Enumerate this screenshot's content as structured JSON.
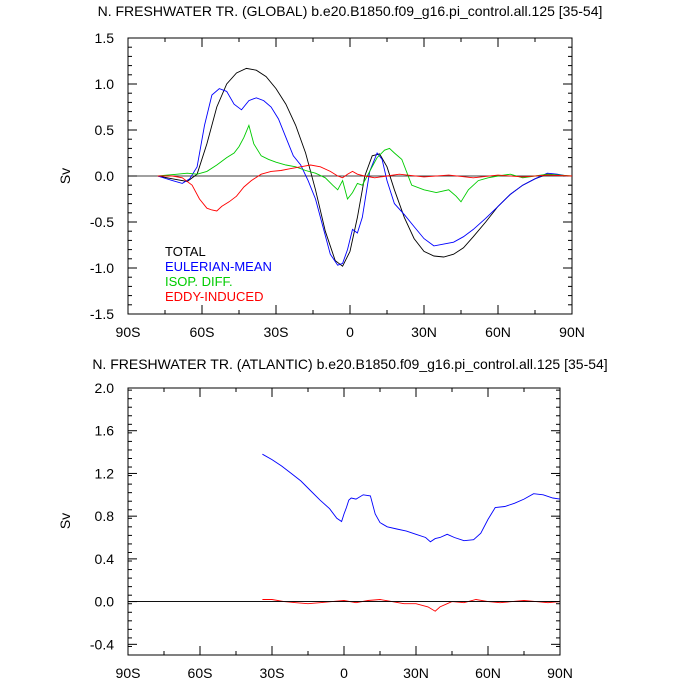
{
  "chart_data": [
    {
      "type": "line",
      "title": "N. FRESHWATER TR. (GLOBAL) b.e20.B1850.f09_g16.pi_control.all.125 [35-54]",
      "ylabel": "Sv",
      "xlabel": "",
      "xlim": [
        -90,
        90
      ],
      "ylim": [
        -1.5,
        1.5
      ],
      "x_ticks": [
        -90,
        -60,
        -30,
        0,
        30,
        60,
        90
      ],
      "x_tick_labels": [
        "90S",
        "60S",
        "30S",
        "0",
        "30N",
        "60N",
        "90N"
      ],
      "y_ticks": [
        -1.5,
        -1.0,
        -0.5,
        0.0,
        0.5,
        1.0,
        1.5
      ],
      "y_tick_labels": [
        "-1.5",
        "-1.0",
        "-0.5",
        "0.0",
        "0.5",
        "1.0",
        "1.5"
      ],
      "zero_line": true,
      "legend_position": "bottom-left",
      "series": [
        {
          "name": "TOTAL",
          "color": "#000000",
          "x": [
            -78,
            -72,
            -66,
            -62,
            -58,
            -54,
            -50,
            -46,
            -42,
            -38,
            -34,
            -30,
            -26,
            -22,
            -18,
            -14,
            -10,
            -6,
            -3,
            0,
            3,
            6,
            9,
            12,
            15,
            18,
            22,
            26,
            30,
            34,
            38,
            42,
            46,
            50,
            55,
            60,
            65,
            70,
            75,
            80,
            84,
            88
          ],
          "y": [
            0.0,
            -0.03,
            -0.06,
            0.02,
            0.35,
            0.75,
            1.0,
            1.12,
            1.17,
            1.15,
            1.08,
            0.95,
            0.78,
            0.55,
            0.25,
            -0.15,
            -0.6,
            -0.92,
            -0.98,
            -0.82,
            -0.45,
            0.0,
            0.22,
            0.24,
            0.1,
            -0.15,
            -0.45,
            -0.68,
            -0.82,
            -0.87,
            -0.88,
            -0.85,
            -0.78,
            -0.66,
            -0.5,
            -0.33,
            -0.2,
            -0.1,
            -0.03,
            0.02,
            0.01,
            0.0
          ]
        },
        {
          "name": "EULERIAN-MEAN",
          "color": "#0000ff",
          "x": [
            -78,
            -72,
            -68,
            -65,
            -62,
            -59,
            -56,
            -53,
            -50,
            -47,
            -44,
            -41,
            -38,
            -35,
            -32,
            -29,
            -26,
            -23,
            -20,
            -17,
            -14,
            -11,
            -8,
            -5,
            -3,
            -1,
            1,
            3,
            5,
            8,
            11,
            13,
            15,
            18,
            22,
            26,
            30,
            34,
            38,
            42,
            46,
            50,
            55,
            60,
            65,
            70,
            75,
            80,
            84,
            88
          ],
          "y": [
            0.0,
            -0.05,
            -0.08,
            -0.03,
            0.1,
            0.55,
            0.88,
            0.95,
            0.92,
            0.78,
            0.72,
            0.82,
            0.85,
            0.82,
            0.75,
            0.62,
            0.42,
            0.22,
            0.12,
            -0.05,
            -0.25,
            -0.55,
            -0.85,
            -0.97,
            -0.95,
            -0.8,
            -0.58,
            -0.62,
            -0.45,
            0.05,
            0.25,
            0.18,
            -0.05,
            -0.3,
            -0.42,
            -0.55,
            -0.68,
            -0.76,
            -0.74,
            -0.72,
            -0.66,
            -0.58,
            -0.46,
            -0.33,
            -0.2,
            -0.1,
            -0.03,
            0.03,
            0.02,
            0.0
          ]
        },
        {
          "name": "ISOP. DIFF.",
          "color": "#00cc00",
          "x": [
            -78,
            -70,
            -66,
            -62,
            -58,
            -54,
            -50,
            -47,
            -45,
            -43,
            -41,
            -39,
            -36,
            -33,
            -30,
            -26,
            -22,
            -18,
            -14,
            -10,
            -7,
            -5,
            -3,
            -1,
            1,
            3,
            5,
            8,
            11,
            14,
            16,
            18,
            21,
            25,
            30,
            35,
            40,
            43,
            45,
            48,
            52,
            56,
            60,
            65,
            70,
            75,
            80,
            85,
            90
          ],
          "y": [
            0.0,
            0.02,
            0.03,
            0.02,
            0.05,
            0.12,
            0.2,
            0.25,
            0.32,
            0.42,
            0.55,
            0.35,
            0.22,
            0.18,
            0.15,
            0.12,
            0.1,
            0.06,
            0.03,
            -0.02,
            -0.1,
            -0.15,
            -0.05,
            -0.25,
            -0.18,
            -0.08,
            -0.1,
            0.05,
            0.2,
            0.28,
            0.3,
            0.25,
            0.18,
            -0.1,
            -0.15,
            -0.18,
            -0.15,
            -0.22,
            -0.28,
            -0.15,
            -0.05,
            -0.02,
            0.0,
            0.02,
            -0.02,
            0.0,
            0.02,
            0.01,
            0.0
          ]
        },
        {
          "name": "EDDY-INDUCED",
          "color": "#ff0000",
          "x": [
            -78,
            -72,
            -68,
            -64,
            -61,
            -58,
            -56,
            -54,
            -52,
            -49,
            -46,
            -43,
            -40,
            -36,
            -32,
            -28,
            -24,
            -20,
            -16,
            -12,
            -8,
            -5,
            -3,
            -1,
            1,
            3,
            6,
            10,
            15,
            20,
            30,
            40,
            50,
            60,
            70,
            80,
            90
          ],
          "y": [
            0.0,
            0.0,
            -0.02,
            -0.1,
            -0.25,
            -0.35,
            -0.37,
            -0.38,
            -0.33,
            -0.28,
            -0.22,
            -0.12,
            -0.05,
            0.02,
            0.05,
            0.06,
            0.08,
            0.1,
            0.12,
            0.1,
            0.05,
            0.0,
            -0.02,
            0.02,
            0.05,
            0.02,
            0.0,
            -0.02,
            0.0,
            0.02,
            -0.01,
            0.01,
            -0.02,
            0.01,
            -0.01,
            0.01,
            0.0
          ]
        }
      ]
    },
    {
      "type": "line",
      "title": "N. FRESHWATER TR. (ATLANTIC) b.e20.B1850.f09_g16.pi_control.all.125 [35-54]",
      "ylabel": "Sv",
      "xlabel": "",
      "xlim": [
        -90,
        90
      ],
      "ylim": [
        -0.5,
        2.0
      ],
      "x_ticks": [
        -90,
        -60,
        -30,
        0,
        30,
        60,
        90
      ],
      "x_tick_labels": [
        "90S",
        "60S",
        "30S",
        "0",
        "30N",
        "60N",
        "90N"
      ],
      "y_ticks": [
        -0.4,
        0.0,
        0.4,
        0.8,
        1.2,
        1.6,
        2.0
      ],
      "y_tick_labels": [
        "-0.4",
        "0.0",
        "0.4",
        "0.8",
        "1.2",
        "1.6",
        "2.0"
      ],
      "zero_line": true,
      "series": [
        {
          "color": "#0000ff",
          "x": [
            -34,
            -30,
            -26,
            -22,
            -18,
            -14,
            -10,
            -6,
            -3,
            -1,
            0,
            1,
            2,
            3,
            5,
            8,
            11,
            13,
            15,
            18,
            22,
            26,
            30,
            34,
            36,
            38,
            40,
            43,
            46,
            50,
            54,
            57,
            60,
            63,
            67,
            71,
            75,
            79,
            83,
            87,
            90
          ],
          "y": [
            1.38,
            1.33,
            1.27,
            1.2,
            1.13,
            1.04,
            0.95,
            0.87,
            0.78,
            0.75,
            0.82,
            0.88,
            0.95,
            0.97,
            0.96,
            1.0,
            0.99,
            0.82,
            0.74,
            0.7,
            0.68,
            0.66,
            0.63,
            0.6,
            0.56,
            0.59,
            0.6,
            0.63,
            0.6,
            0.57,
            0.58,
            0.64,
            0.77,
            0.88,
            0.89,
            0.92,
            0.96,
            1.01,
            1.0,
            0.97,
            0.96
          ]
        },
        {
          "color": "#ff0000",
          "x": [
            -34,
            -30,
            -25,
            -20,
            -15,
            -10,
            -5,
            0,
            5,
            10,
            15,
            20,
            25,
            30,
            35,
            38,
            40,
            43,
            45,
            50,
            55,
            60,
            65,
            70,
            75,
            80,
            85,
            90
          ],
          "y": [
            0.02,
            0.02,
            0.0,
            -0.01,
            -0.02,
            -0.01,
            0.0,
            0.01,
            -0.01,
            0.01,
            0.02,
            0.0,
            -0.02,
            -0.02,
            -0.05,
            -0.09,
            -0.05,
            -0.02,
            0.0,
            -0.01,
            0.02,
            0.0,
            -0.01,
            0.0,
            0.01,
            0.0,
            -0.01,
            0.0
          ]
        },
        {
          "color": "#000000",
          "x": [
            -90,
            90
          ],
          "y": [
            0.0,
            0.0
          ]
        }
      ]
    }
  ]
}
